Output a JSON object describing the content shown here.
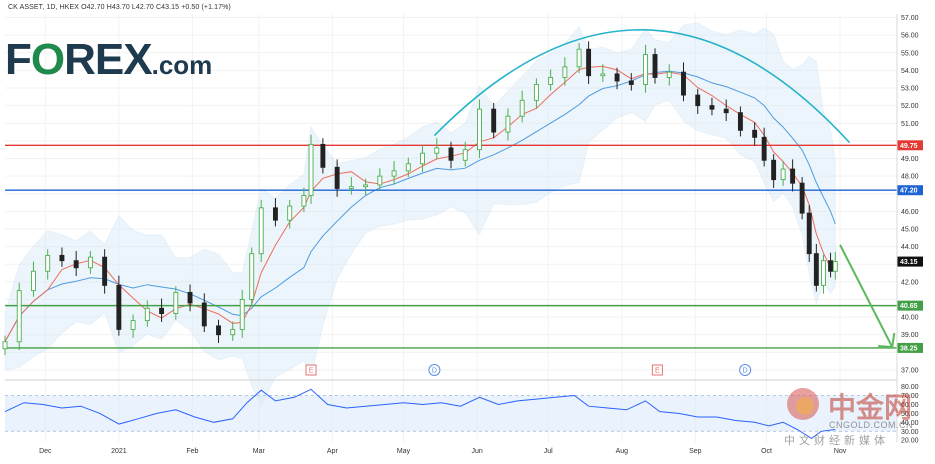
{
  "header_text": "CK ASSET, 1D, HKEX  O42.70  H43.70  L42.70  C43.15  +0.50 (+1.17%)",
  "logo": {
    "main": "F",
    "o": "O",
    "rest": "REX",
    "com": ".com"
  },
  "watermark": {
    "cn": "中金网",
    "url": "CNGOLD.COM.CN",
    "sub": "中文财经新媒体"
  },
  "colors": {
    "up": "#4caf50",
    "down": "#222222",
    "candle_fill_up": "#ffffff",
    "red_line": "#e53935",
    "blue_line": "#1e63d6",
    "green_line": "#43a047",
    "arc": "#26b3c9",
    "sma_red": "#ef6c5c",
    "sma_blue": "#4d9be0",
    "band_fill": "#d6e9f8",
    "rsi_line": "#2962ff",
    "rsi_band": "#dbeafc",
    "arrow": "#5cb85c"
  },
  "chart_data": {
    "type": "candlestick",
    "title": "CK ASSET, 1D, HKEX",
    "ohlc_last": {
      "open": 42.7,
      "high": 43.7,
      "low": 42.7,
      "close": 43.15,
      "change": 0.5,
      "change_pct": 1.17
    },
    "y_ticks": [
      37.0,
      38.0,
      39.0,
      40.0,
      41.0,
      42.0,
      43.0,
      44.0,
      45.0,
      46.0,
      47.0,
      48.0,
      49.0,
      50.0,
      51.0,
      52.0,
      53.0,
      54.0,
      55.0,
      56.0,
      57.0
    ],
    "y_tick_labels": [
      "37.00",
      "38.00",
      "39.00",
      "40.00",
      "41.00",
      "42.00",
      "43.00",
      "44.00",
      "45.00",
      "46.00",
      "47.00",
      "48.00",
      "49.00",
      "50.00",
      "51.00",
      "52.00",
      "53.00",
      "54.00",
      "55.00",
      "56.00",
      "57.00"
    ],
    "ylim": [
      36.6,
      57.2
    ],
    "x_labels": [
      "Dec",
      "2021",
      "Feb",
      "Mar",
      "Apr",
      "May",
      "Jun",
      "Jul",
      "Aug",
      "Sep",
      "Oct",
      "Nov"
    ],
    "x_label_days": [
      1,
      32,
      63,
      91,
      122,
      152,
      183,
      213,
      244,
      275,
      305,
      336
    ],
    "xlim_days": [
      -16,
      360
    ],
    "horizontal_levels": [
      {
        "value": 49.75,
        "label": "49.75",
        "color": "#e53935"
      },
      {
        "value": 47.2,
        "label": "47.20",
        "color": "#1e63d6"
      },
      {
        "value": 40.65,
        "label": "40.65",
        "color": "#43a047"
      },
      {
        "value": 38.25,
        "label": "38.25",
        "color": "#43a047"
      }
    ],
    "last_price_label": "43.15",
    "event_markers": [
      {
        "day": 113,
        "letter": "E"
      },
      {
        "day": 165,
        "letter": "D"
      },
      {
        "day": 259,
        "letter": "E"
      },
      {
        "day": 296,
        "letter": "D"
      }
    ],
    "close_series": [
      {
        "day": -16,
        "close": 38.6
      },
      {
        "day": -10,
        "close": 41.5
      },
      {
        "day": -4,
        "close": 42.6
      },
      {
        "day": 2,
        "close": 43.5
      },
      {
        "day": 8,
        "close": 43.2
      },
      {
        "day": 14,
        "close": 42.8
      },
      {
        "day": 20,
        "close": 43.4
      },
      {
        "day": 26,
        "close": 41.8
      },
      {
        "day": 32,
        "close": 39.3
      },
      {
        "day": 38,
        "close": 39.8
      },
      {
        "day": 44,
        "close": 40.5
      },
      {
        "day": 50,
        "close": 40.2
      },
      {
        "day": 56,
        "close": 41.4
      },
      {
        "day": 62,
        "close": 40.8
      },
      {
        "day": 68,
        "close": 39.5
      },
      {
        "day": 74,
        "close": 39.0
      },
      {
        "day": 80,
        "close": 39.3
      },
      {
        "day": 84,
        "close": 41.0
      },
      {
        "day": 88,
        "close": 43.6
      },
      {
        "day": 92,
        "close": 46.2
      },
      {
        "day": 98,
        "close": 45.5
      },
      {
        "day": 104,
        "close": 46.3
      },
      {
        "day": 110,
        "close": 46.9
      },
      {
        "day": 113,
        "close": 49.8
      },
      {
        "day": 118,
        "close": 48.5
      },
      {
        "day": 124,
        "close": 47.3
      },
      {
        "day": 130,
        "close": 47.4
      },
      {
        "day": 136,
        "close": 47.5
      },
      {
        "day": 142,
        "close": 48.0
      },
      {
        "day": 148,
        "close": 48.3
      },
      {
        "day": 154,
        "close": 48.7
      },
      {
        "day": 160,
        "close": 49.3
      },
      {
        "day": 166,
        "close": 49.6
      },
      {
        "day": 172,
        "close": 48.9
      },
      {
        "day": 178,
        "close": 49.5
      },
      {
        "day": 184,
        "close": 51.8
      },
      {
        "day": 190,
        "close": 50.5
      },
      {
        "day": 196,
        "close": 51.4
      },
      {
        "day": 202,
        "close": 52.3
      },
      {
        "day": 208,
        "close": 53.2
      },
      {
        "day": 214,
        "close": 53.6
      },
      {
        "day": 220,
        "close": 54.2
      },
      {
        "day": 226,
        "close": 55.2
      },
      {
        "day": 230,
        "close": 53.7
      },
      {
        "day": 236,
        "close": 53.8
      },
      {
        "day": 242,
        "close": 53.4
      },
      {
        "day": 248,
        "close": 53.2
      },
      {
        "day": 254,
        "close": 54.9
      },
      {
        "day": 258,
        "close": 53.6
      },
      {
        "day": 264,
        "close": 53.9
      },
      {
        "day": 270,
        "close": 52.6
      },
      {
        "day": 276,
        "close": 52.0
      },
      {
        "day": 282,
        "close": 51.8
      },
      {
        "day": 288,
        "close": 51.6
      },
      {
        "day": 294,
        "close": 50.6
      },
      {
        "day": 300,
        "close": 50.2
      },
      {
        "day": 304,
        "close": 48.9
      },
      {
        "day": 308,
        "close": 47.8
      },
      {
        "day": 312,
        "close": 48.4
      },
      {
        "day": 316,
        "close": 47.6
      },
      {
        "day": 320,
        "close": 45.9
      },
      {
        "day": 323,
        "close": 43.6
      },
      {
        "day": 326,
        "close": 41.8
      },
      {
        "day": 329,
        "close": 43.2
      },
      {
        "day": 332,
        "close": 42.6
      },
      {
        "day": 334,
        "close": 43.15
      }
    ],
    "sma_fast_label": "",
    "sma_slow_label": "",
    "rsi": {
      "y_ticks": [
        80,
        70,
        60,
        50,
        40,
        30,
        20
      ],
      "y_tick_labels": [
        "80.00",
        "70.00",
        "60.00",
        "50.00",
        "40.00",
        "30.00",
        "20.00"
      ],
      "ylim": [
        18,
        84
      ],
      "band": [
        30,
        70
      ],
      "values": [
        {
          "day": -16,
          "v": 52
        },
        {
          "day": -8,
          "v": 62
        },
        {
          "day": 0,
          "v": 60
        },
        {
          "day": 8,
          "v": 56
        },
        {
          "day": 16,
          "v": 58
        },
        {
          "day": 24,
          "v": 50
        },
        {
          "day": 32,
          "v": 38
        },
        {
          "day": 40,
          "v": 44
        },
        {
          "day": 48,
          "v": 50
        },
        {
          "day": 56,
          "v": 54
        },
        {
          "day": 64,
          "v": 46
        },
        {
          "day": 72,
          "v": 40
        },
        {
          "day": 80,
          "v": 44
        },
        {
          "day": 86,
          "v": 62
        },
        {
          "day": 92,
          "v": 76
        },
        {
          "day": 98,
          "v": 64
        },
        {
          "day": 106,
          "v": 68
        },
        {
          "day": 113,
          "v": 77
        },
        {
          "day": 120,
          "v": 60
        },
        {
          "day": 128,
          "v": 56
        },
        {
          "day": 136,
          "v": 58
        },
        {
          "day": 144,
          "v": 60
        },
        {
          "day": 152,
          "v": 62
        },
        {
          "day": 160,
          "v": 60
        },
        {
          "day": 168,
          "v": 62
        },
        {
          "day": 176,
          "v": 58
        },
        {
          "day": 184,
          "v": 68
        },
        {
          "day": 192,
          "v": 60
        },
        {
          "day": 200,
          "v": 64
        },
        {
          "day": 208,
          "v": 66
        },
        {
          "day": 216,
          "v": 68
        },
        {
          "day": 224,
          "v": 70
        },
        {
          "day": 230,
          "v": 58
        },
        {
          "day": 238,
          "v": 56
        },
        {
          "day": 246,
          "v": 54
        },
        {
          "day": 254,
          "v": 64
        },
        {
          "day": 260,
          "v": 52
        },
        {
          "day": 268,
          "v": 50
        },
        {
          "day": 276,
          "v": 46
        },
        {
          "day": 284,
          "v": 46
        },
        {
          "day": 292,
          "v": 42
        },
        {
          "day": 300,
          "v": 40
        },
        {
          "day": 306,
          "v": 36
        },
        {
          "day": 312,
          "v": 40
        },
        {
          "day": 318,
          "v": 32
        },
        {
          "day": 324,
          "v": 22
        },
        {
          "day": 328,
          "v": 30
        },
        {
          "day": 334,
          "v": 32
        }
      ]
    }
  }
}
